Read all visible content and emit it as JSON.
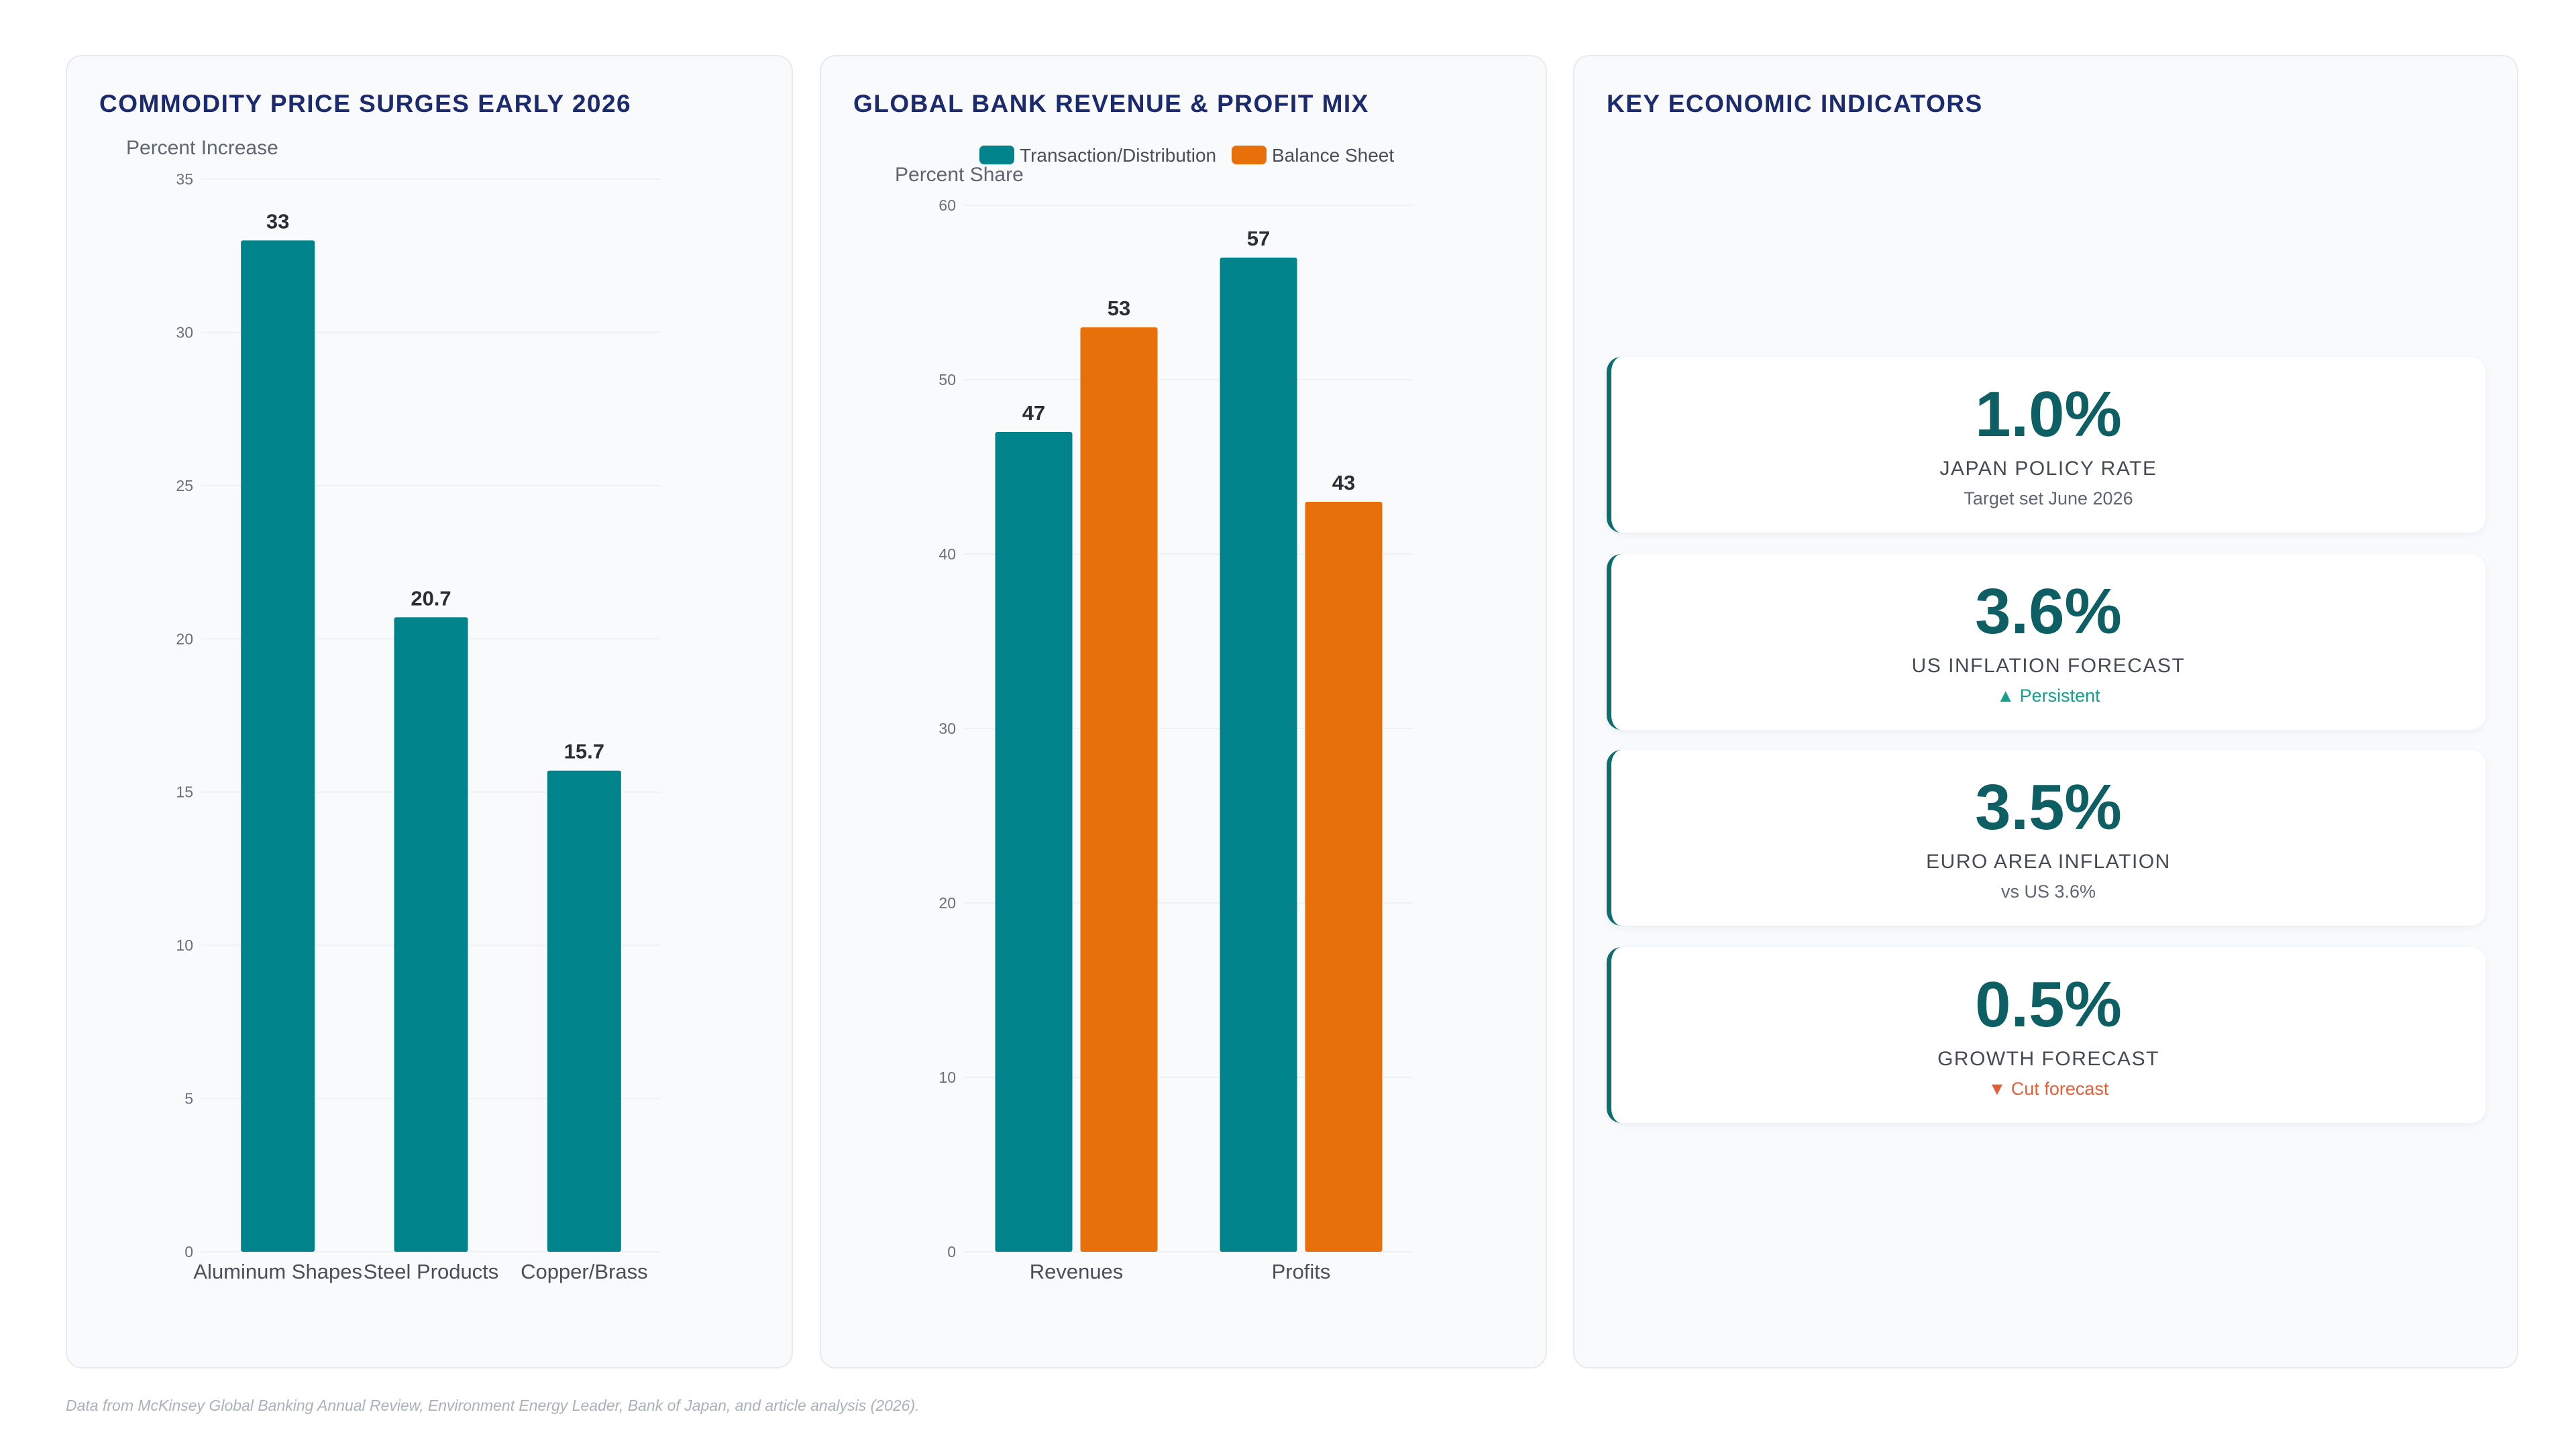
{
  "panels": {
    "commodity": {
      "title": "COMMODITY PRICE SURGES EARLY 2026"
    },
    "bank": {
      "title": "GLOBAL BANK REVENUE & PROFIT MIX"
    },
    "indicators": {
      "title": "KEY ECONOMIC INDICATORS"
    }
  },
  "chart_data": [
    {
      "type": "bar",
      "title": "COMMODITY PRICE SURGES EARLY 2026",
      "ylabel": "Percent Increase",
      "categories": [
        "Aluminum Shapes",
        "Steel Products",
        "Copper/Brass"
      ],
      "values": [
        33,
        20.7,
        15.7
      ],
      "value_labels": [
        "33",
        "20.7",
        "15.7"
      ],
      "yticks": [
        "0",
        "5",
        "10",
        "15",
        "20",
        "25",
        "30",
        "35"
      ],
      "ylim": [
        0,
        35
      ],
      "grid": true,
      "color": "#00838a"
    },
    {
      "type": "bar",
      "title": "GLOBAL BANK REVENUE & PROFIT MIX",
      "ylabel": "Percent Share",
      "categories": [
        "Revenues",
        "Profits"
      ],
      "series": [
        {
          "name": "Transaction/Distribution",
          "values": [
            47,
            57
          ],
          "value_labels": [
            "47",
            "57"
          ],
          "color": "#00838a"
        },
        {
          "name": "Balance Sheet",
          "values": [
            53,
            43
          ],
          "value_labels": [
            "53",
            "43"
          ],
          "color": "#e8700a"
        }
      ],
      "yticks": [
        "0",
        "10",
        "20",
        "30",
        "40",
        "50",
        "60"
      ],
      "ylim": [
        0,
        60
      ],
      "grid": true,
      "legend": "top"
    }
  ],
  "indicators": [
    {
      "value": "1.0%",
      "label": "JAPAN POLICY RATE",
      "sub": "Target set June 2026",
      "trend": "neutral"
    },
    {
      "value": "3.6%",
      "label": "US INFLATION FORECAST",
      "sub": "▲ Persistent",
      "trend": "up"
    },
    {
      "value": "3.5%",
      "label": "EURO AREA INFLATION",
      "sub": "vs US 3.6%",
      "trend": "neutral"
    },
    {
      "value": "0.5%",
      "label": "GROWTH FORECAST",
      "sub": "▼ Cut forecast",
      "trend": "down"
    }
  ],
  "footer": "Data from McKinsey Global Banking Annual Review, Environment Energy Leader, Bank of Japan, and article analysis (2026)."
}
